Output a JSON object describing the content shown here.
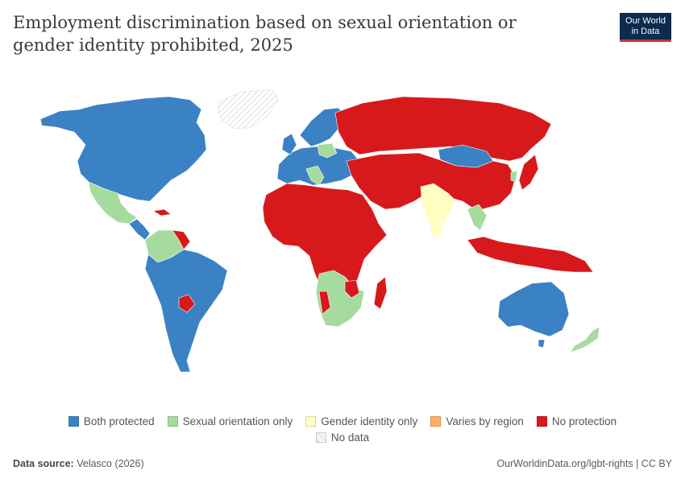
{
  "title": "Employment discrimination based on sexual orientation or gender identity prohibited, 2025",
  "logo": {
    "line1": "Our World",
    "line2": "in Data"
  },
  "colors": {
    "both": "#3b82c4",
    "sexual": "#a6dba0",
    "gender": "#ffffc4",
    "varies": "#fdae61",
    "none": "#d7191c",
    "nodata": "#e6e6e6"
  },
  "legend": [
    {
      "key": "both",
      "label": "Both protected"
    },
    {
      "key": "sexual",
      "label": "Sexual orientation only"
    },
    {
      "key": "gender",
      "label": "Gender identity only"
    },
    {
      "key": "varies",
      "label": "Varies by region"
    },
    {
      "key": "none",
      "label": "No protection"
    }
  ],
  "legend_nodata": {
    "key": "nodata",
    "label": "No data"
  },
  "source_label": "Data source:",
  "source_value": "Velasco (2026)",
  "url_text": "OurWorldinData.org/lgbt-rights | CC BY"
}
